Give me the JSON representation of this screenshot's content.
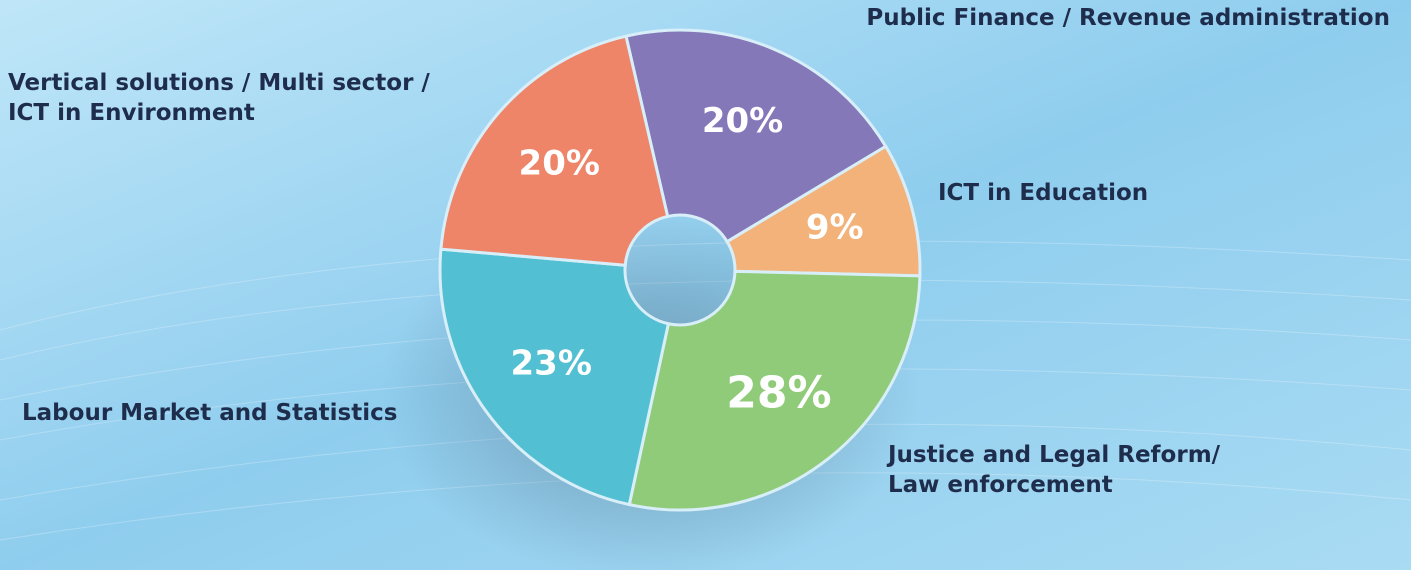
{
  "chart_data": {
    "type": "pie",
    "categories": [
      [
        "Public Finance / Revenue administration"
      ],
      [
        "ICT in Education"
      ],
      [
        "Justice and Legal Reform/",
        "Law enforcement"
      ],
      [
        "Labour Market and Statistics"
      ],
      [
        "Vertical solutions / Multi sector /",
        "ICT in Environment"
      ]
    ],
    "values": [
      20,
      9,
      28,
      23,
      20
    ],
    "value_labels": [
      "20%",
      "9%",
      "28%",
      "23%",
      "20%"
    ],
    "colors": [
      "#8478b8",
      "#f2b27a",
      "#8fcb78",
      "#52c0d2",
      "#ee8468"
    ]
  }
}
